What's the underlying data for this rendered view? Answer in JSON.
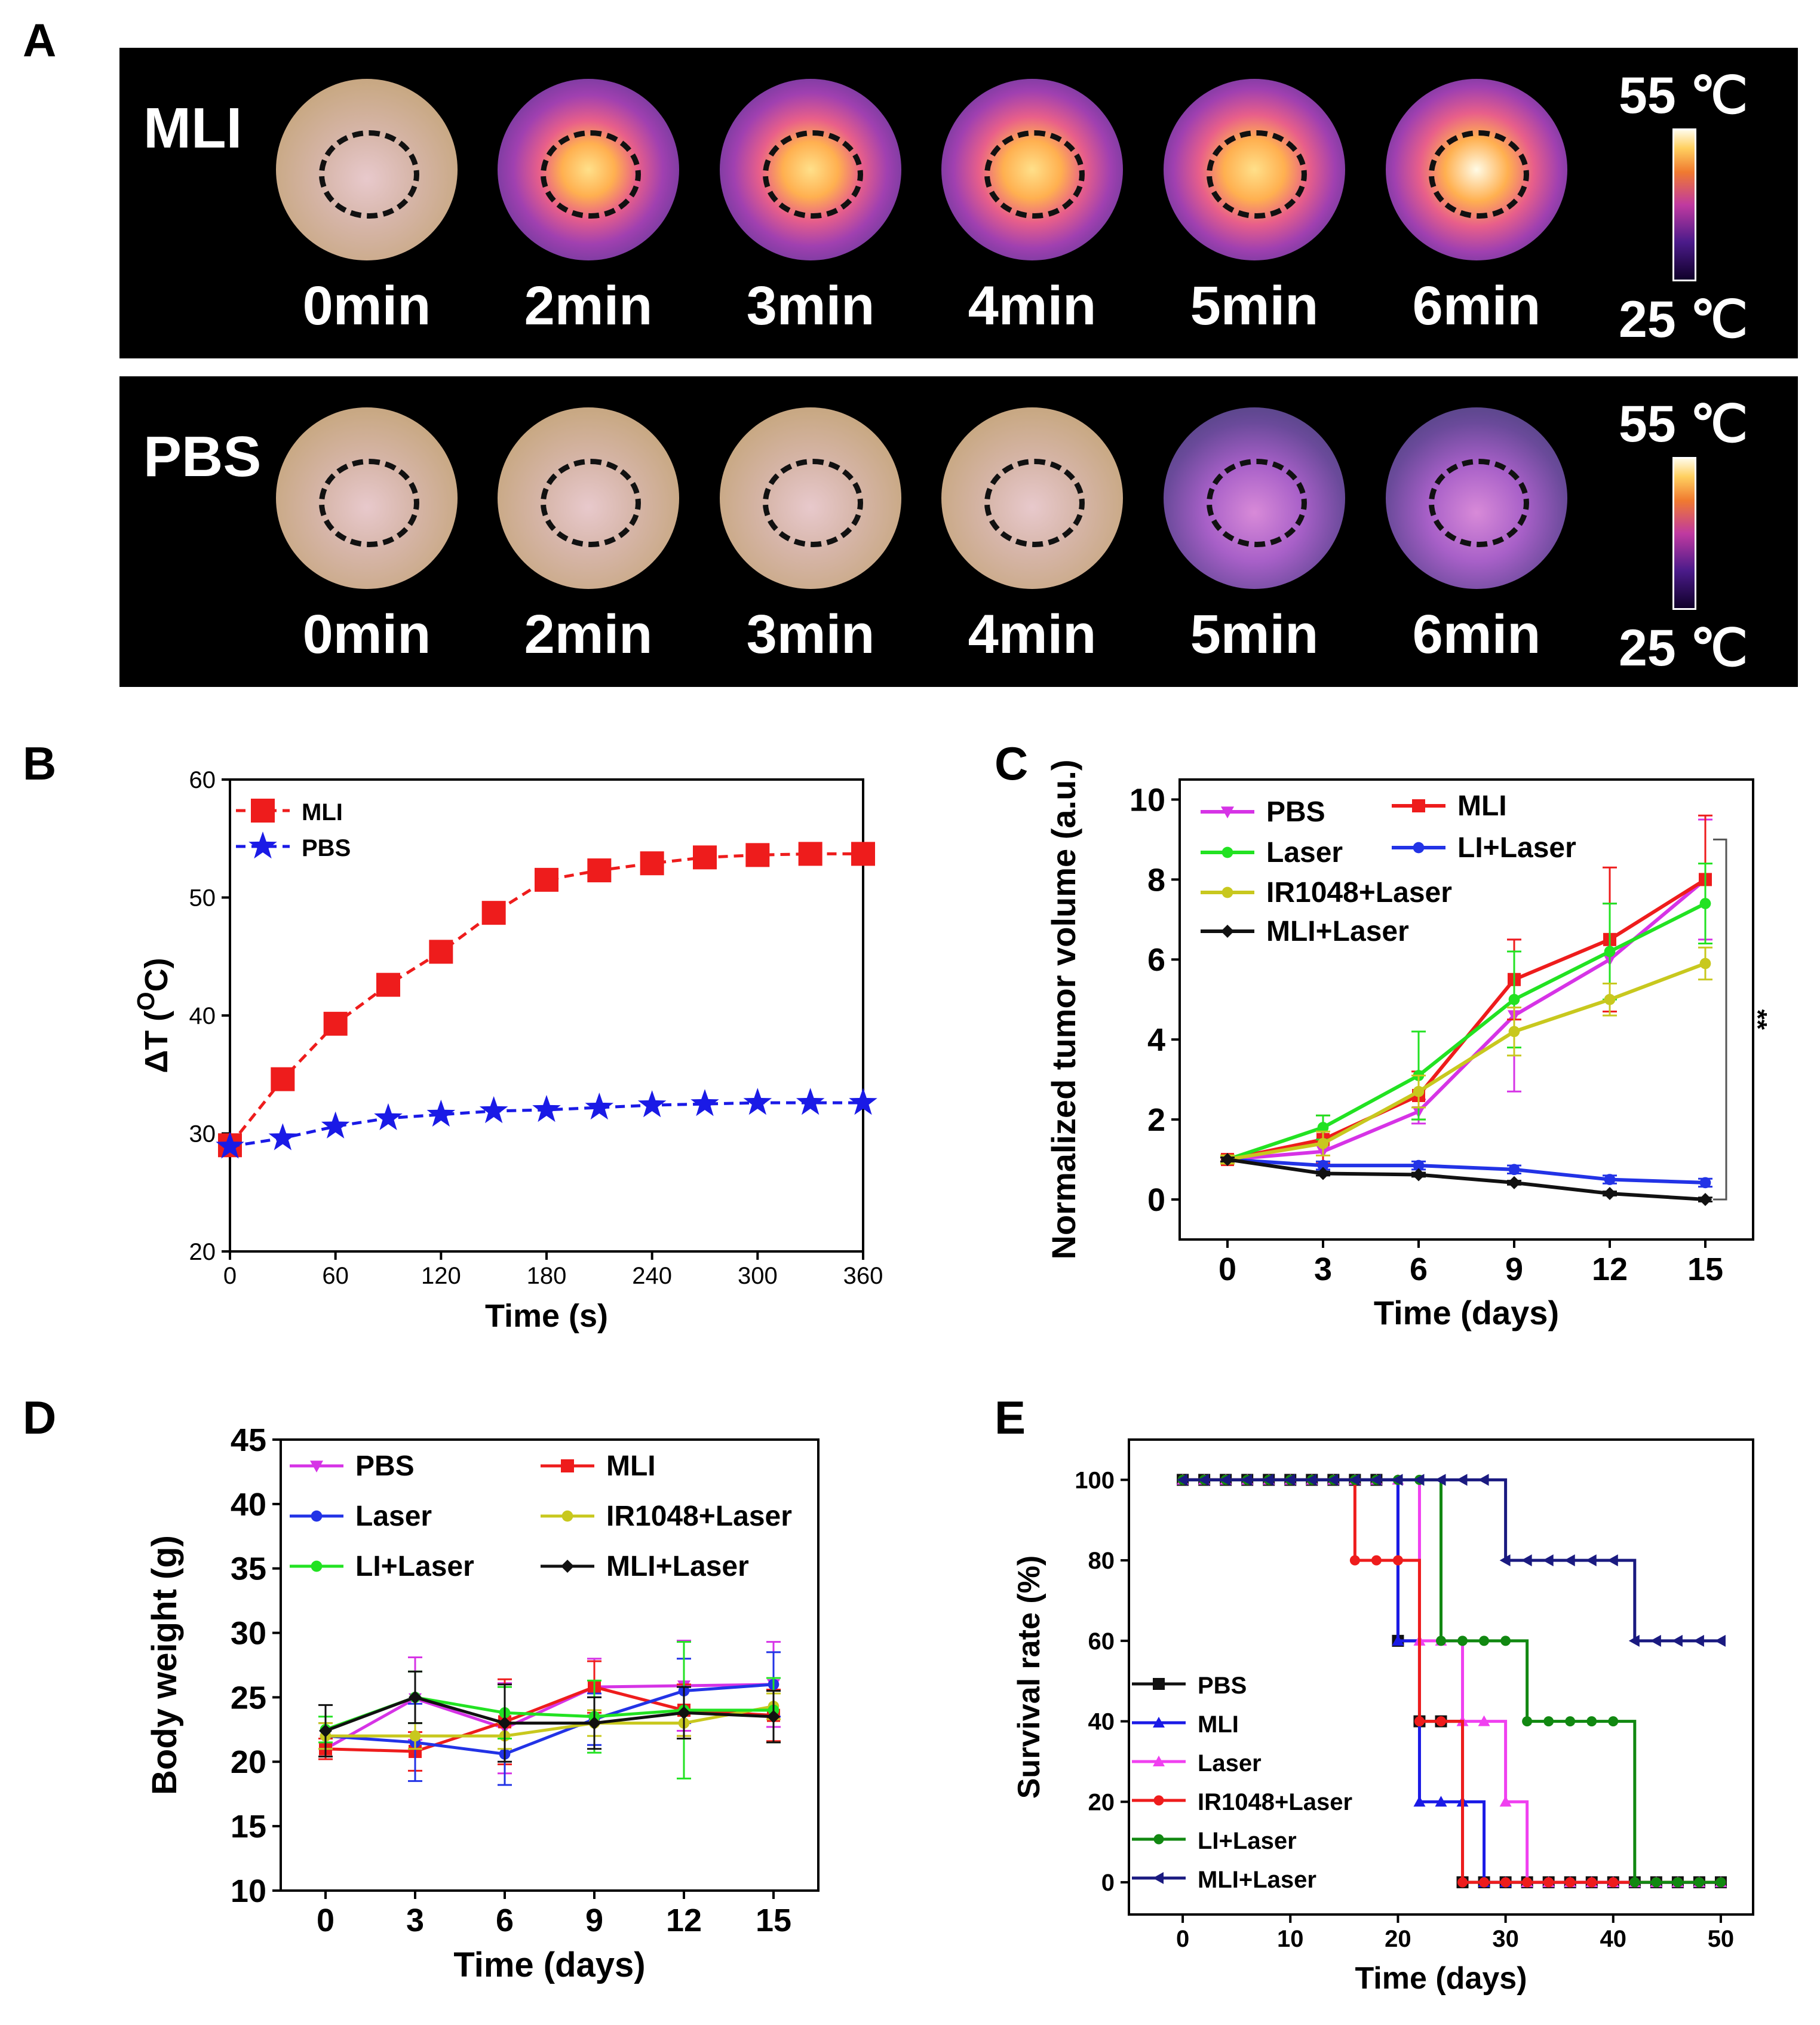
{
  "panel_a": {
    "letter": "A",
    "rows": [
      {
        "label": "MLI",
        "times": [
          "0min",
          "2min",
          "3min",
          "4min",
          "5min",
          "6min"
        ],
        "scale_max": "55 ℃",
        "scale_min": "25 ℃"
      },
      {
        "label": "PBS",
        "times": [
          "0min",
          "2min",
          "3min",
          "4min",
          "5min",
          "6min"
        ],
        "scale_max": "55 ℃",
        "scale_min": "25 ℃"
      }
    ],
    "heat_levels": [
      [
        0.0,
        0.55,
        0.65,
        0.75,
        0.85,
        0.95
      ],
      [
        0.0,
        0.0,
        0.0,
        0.0,
        0.25,
        0.3
      ]
    ]
  },
  "chart_data": [
    {
      "panel": "B",
      "type": "line",
      "xlabel": "Time (s)",
      "ylabel": "ΔT (",
      "ylabel_unit_sup": "O",
      "ylabel_unit": "C)",
      "xlim": [
        0,
        360
      ],
      "ylim": [
        20,
        60
      ],
      "xticks": [
        0,
        60,
        120,
        180,
        240,
        300,
        360
      ],
      "yticks": [
        20,
        30,
        40,
        50,
        60
      ],
      "legend": "top-left",
      "series": [
        {
          "name": "MLI",
          "color": "#ee1c1c",
          "marker": "square",
          "x": [
            0,
            30,
            60,
            90,
            120,
            150,
            180,
            210,
            240,
            270,
            300,
            330,
            360
          ],
          "y": [
            29.0,
            34.6,
            39.3,
            42.6,
            45.4,
            48.7,
            51.5,
            52.3,
            52.9,
            53.4,
            53.6,
            53.7,
            53.7
          ]
        },
        {
          "name": "PBS",
          "color": "#1a1ae6",
          "marker": "star",
          "x": [
            0,
            30,
            60,
            90,
            120,
            150,
            180,
            210,
            240,
            270,
            300,
            330,
            360
          ],
          "y": [
            28.9,
            29.6,
            30.6,
            31.3,
            31.6,
            31.9,
            32.0,
            32.2,
            32.4,
            32.5,
            32.6,
            32.6,
            32.6
          ]
        }
      ]
    },
    {
      "panel": "C",
      "type": "line",
      "xlabel": "Time (days)",
      "ylabel": "Normalized tumor volume (a.u.)",
      "xlim": [
        -1.5,
        16.5
      ],
      "ylim": [
        -1,
        10.5
      ],
      "xticks": [
        0,
        3,
        6,
        9,
        12,
        15
      ],
      "yticks": [
        0,
        2,
        4,
        6,
        8,
        10
      ],
      "legend": "top-left",
      "significance": "**",
      "series": [
        {
          "name": "PBS",
          "color": "#d633e6",
          "marker": "triangle-down",
          "x": [
            0,
            3,
            6,
            9,
            12,
            15
          ],
          "y": [
            1.0,
            1.2,
            2.2,
            4.6,
            6.0,
            8.0
          ],
          "err": [
            0.1,
            0.3,
            0.3,
            1.9,
            1.4,
            1.5
          ]
        },
        {
          "name": "MLI",
          "color": "#ee1c1c",
          "marker": "square",
          "x": [
            0,
            3,
            6,
            9,
            12,
            15
          ],
          "y": [
            1.0,
            1.5,
            2.6,
            5.5,
            6.5,
            8.0
          ],
          "err": [
            0.1,
            0.6,
            0.6,
            1.0,
            1.8,
            1.6
          ]
        },
        {
          "name": "Laser",
          "color": "#22e222",
          "marker": "circle",
          "x": [
            0,
            3,
            6,
            9,
            12,
            15
          ],
          "y": [
            1.0,
            1.8,
            3.1,
            5.0,
            6.2,
            7.4
          ],
          "err": [
            0.1,
            0.3,
            1.1,
            1.2,
            1.2,
            1.0
          ]
        },
        {
          "name": "LI+Laser",
          "color": "#2233e6",
          "marker": "circle",
          "x": [
            0,
            3,
            6,
            9,
            12,
            15
          ],
          "y": [
            1.0,
            0.85,
            0.85,
            0.75,
            0.5,
            0.42
          ],
          "err": [
            0.05,
            0.1,
            0.1,
            0.1,
            0.1,
            0.1
          ]
        },
        {
          "name": "IR1048+Laser",
          "color": "#c8c81e",
          "marker": "circle",
          "x": [
            0,
            3,
            6,
            9,
            12,
            15
          ],
          "y": [
            1.0,
            1.4,
            2.7,
            4.2,
            5.0,
            5.9
          ],
          "err": [
            0.1,
            0.3,
            0.4,
            0.6,
            0.4,
            0.4
          ]
        },
        {
          "name": "MLI+Laser",
          "color": "#111111",
          "marker": "diamond",
          "x": [
            0,
            3,
            6,
            9,
            12,
            15
          ],
          "y": [
            1.0,
            0.65,
            0.62,
            0.42,
            0.15,
            0.0
          ],
          "err": [
            0.05,
            0.05,
            0.05,
            0.05,
            0.05,
            0.05
          ]
        }
      ]
    },
    {
      "panel": "D",
      "type": "line",
      "xlabel": "Time (days)",
      "ylabel": "Body weight (g)",
      "xlim": [
        -1.5,
        16.5
      ],
      "ylim": [
        10,
        45
      ],
      "xticks": [
        0,
        3,
        6,
        9,
        12,
        15
      ],
      "yticks": [
        10,
        15,
        20,
        25,
        30,
        35,
        40,
        45
      ],
      "legend": "top",
      "series": [
        {
          "name": "PBS",
          "color": "#d633e6",
          "marker": "triangle-down",
          "x": [
            0,
            3,
            6,
            9,
            12,
            15
          ],
          "y": [
            21.0,
            24.9,
            22.6,
            25.8,
            25.9,
            26.0
          ],
          "err": [
            0.8,
            3.2,
            3.5,
            2.2,
            3.5,
            3.3
          ]
        },
        {
          "name": "MLI",
          "color": "#ee1c1c",
          "marker": "square",
          "x": [
            0,
            3,
            6,
            9,
            12,
            15
          ],
          "y": [
            21.0,
            20.8,
            23.1,
            25.8,
            24.0,
            23.6
          ],
          "err": [
            0.8,
            1.5,
            3.3,
            2.0,
            2.0,
            2.0
          ]
        },
        {
          "name": "Laser",
          "color": "#2233e6",
          "marker": "circle",
          "x": [
            0,
            3,
            6,
            9,
            12,
            15
          ],
          "y": [
            22.0,
            21.5,
            20.6,
            23.3,
            25.5,
            26.0
          ],
          "err": [
            1.0,
            3.0,
            2.4,
            2.0,
            2.5,
            2.5
          ]
        },
        {
          "name": "IR1048+Laser",
          "color": "#c8c81e",
          "marker": "circle",
          "x": [
            0,
            3,
            6,
            9,
            12,
            15
          ],
          "y": [
            22.0,
            22.0,
            22.0,
            23.0,
            23.0,
            24.3
          ],
          "err": [
            1.0,
            1.0,
            1.0,
            1.0,
            1.0,
            1.0
          ]
        },
        {
          "name": "LI+Laser",
          "color": "#22e222",
          "marker": "circle",
          "x": [
            0,
            3,
            6,
            9,
            12,
            15
          ],
          "y": [
            22.5,
            25.0,
            23.8,
            23.5,
            24.0,
            24.0
          ],
          "err": [
            1.0,
            2.0,
            2.0,
            2.8,
            5.3,
            2.5
          ]
        },
        {
          "name": "MLI+Laser",
          "color": "#111111",
          "marker": "diamond",
          "x": [
            0,
            3,
            6,
            9,
            12,
            15
          ],
          "y": [
            22.4,
            25.0,
            23.0,
            23.0,
            23.8,
            23.5
          ],
          "err": [
            2.0,
            2.0,
            3.0,
            2.0,
            2.0,
            2.0
          ]
        }
      ]
    },
    {
      "panel": "E",
      "type": "line",
      "step": true,
      "xlabel": "Time (days)",
      "ylabel": "Survival rate (%)",
      "xlim": [
        -5,
        53
      ],
      "ylim": [
        -8,
        110
      ],
      "xticks": [
        0,
        10,
        20,
        30,
        40,
        50
      ],
      "yticks": [
        0,
        20,
        40,
        60,
        80,
        100
      ],
      "legend": "bottom-left",
      "series": [
        {
          "name": "PBS",
          "color": "#111111",
          "marker": "square",
          "x": [
            0,
            20,
            22,
            24,
            26,
            50
          ],
          "y": [
            100,
            60,
            40,
            40,
            0,
            0
          ]
        },
        {
          "name": "MLI",
          "color": "#1a1ae6",
          "marker": "triangle",
          "x": [
            0,
            20,
            22,
            28,
            50
          ],
          "y": [
            100,
            60,
            20,
            0,
            0
          ]
        },
        {
          "name": "Laser",
          "color": "#f040f0",
          "marker": "triangle",
          "x": [
            0,
            22,
            26,
            30,
            32,
            50
          ],
          "y": [
            100,
            60,
            40,
            20,
            0,
            0
          ]
        },
        {
          "name": "IR1048+Laser",
          "color": "#ee1c1c",
          "marker": "circle",
          "x": [
            0,
            16,
            22,
            26,
            50
          ],
          "y": [
            100,
            80,
            40,
            0,
            0
          ]
        },
        {
          "name": "LI+Laser",
          "color": "#118811",
          "marker": "circle",
          "x": [
            0,
            24,
            32,
            42,
            50
          ],
          "y": [
            100,
            60,
            40,
            0,
            0
          ]
        },
        {
          "name": "MLI+Laser",
          "color": "#1a1a80",
          "marker": "triangle-left",
          "x": [
            0,
            30,
            42,
            50
          ],
          "y": [
            100,
            80,
            60,
            60
          ]
        }
      ]
    }
  ]
}
